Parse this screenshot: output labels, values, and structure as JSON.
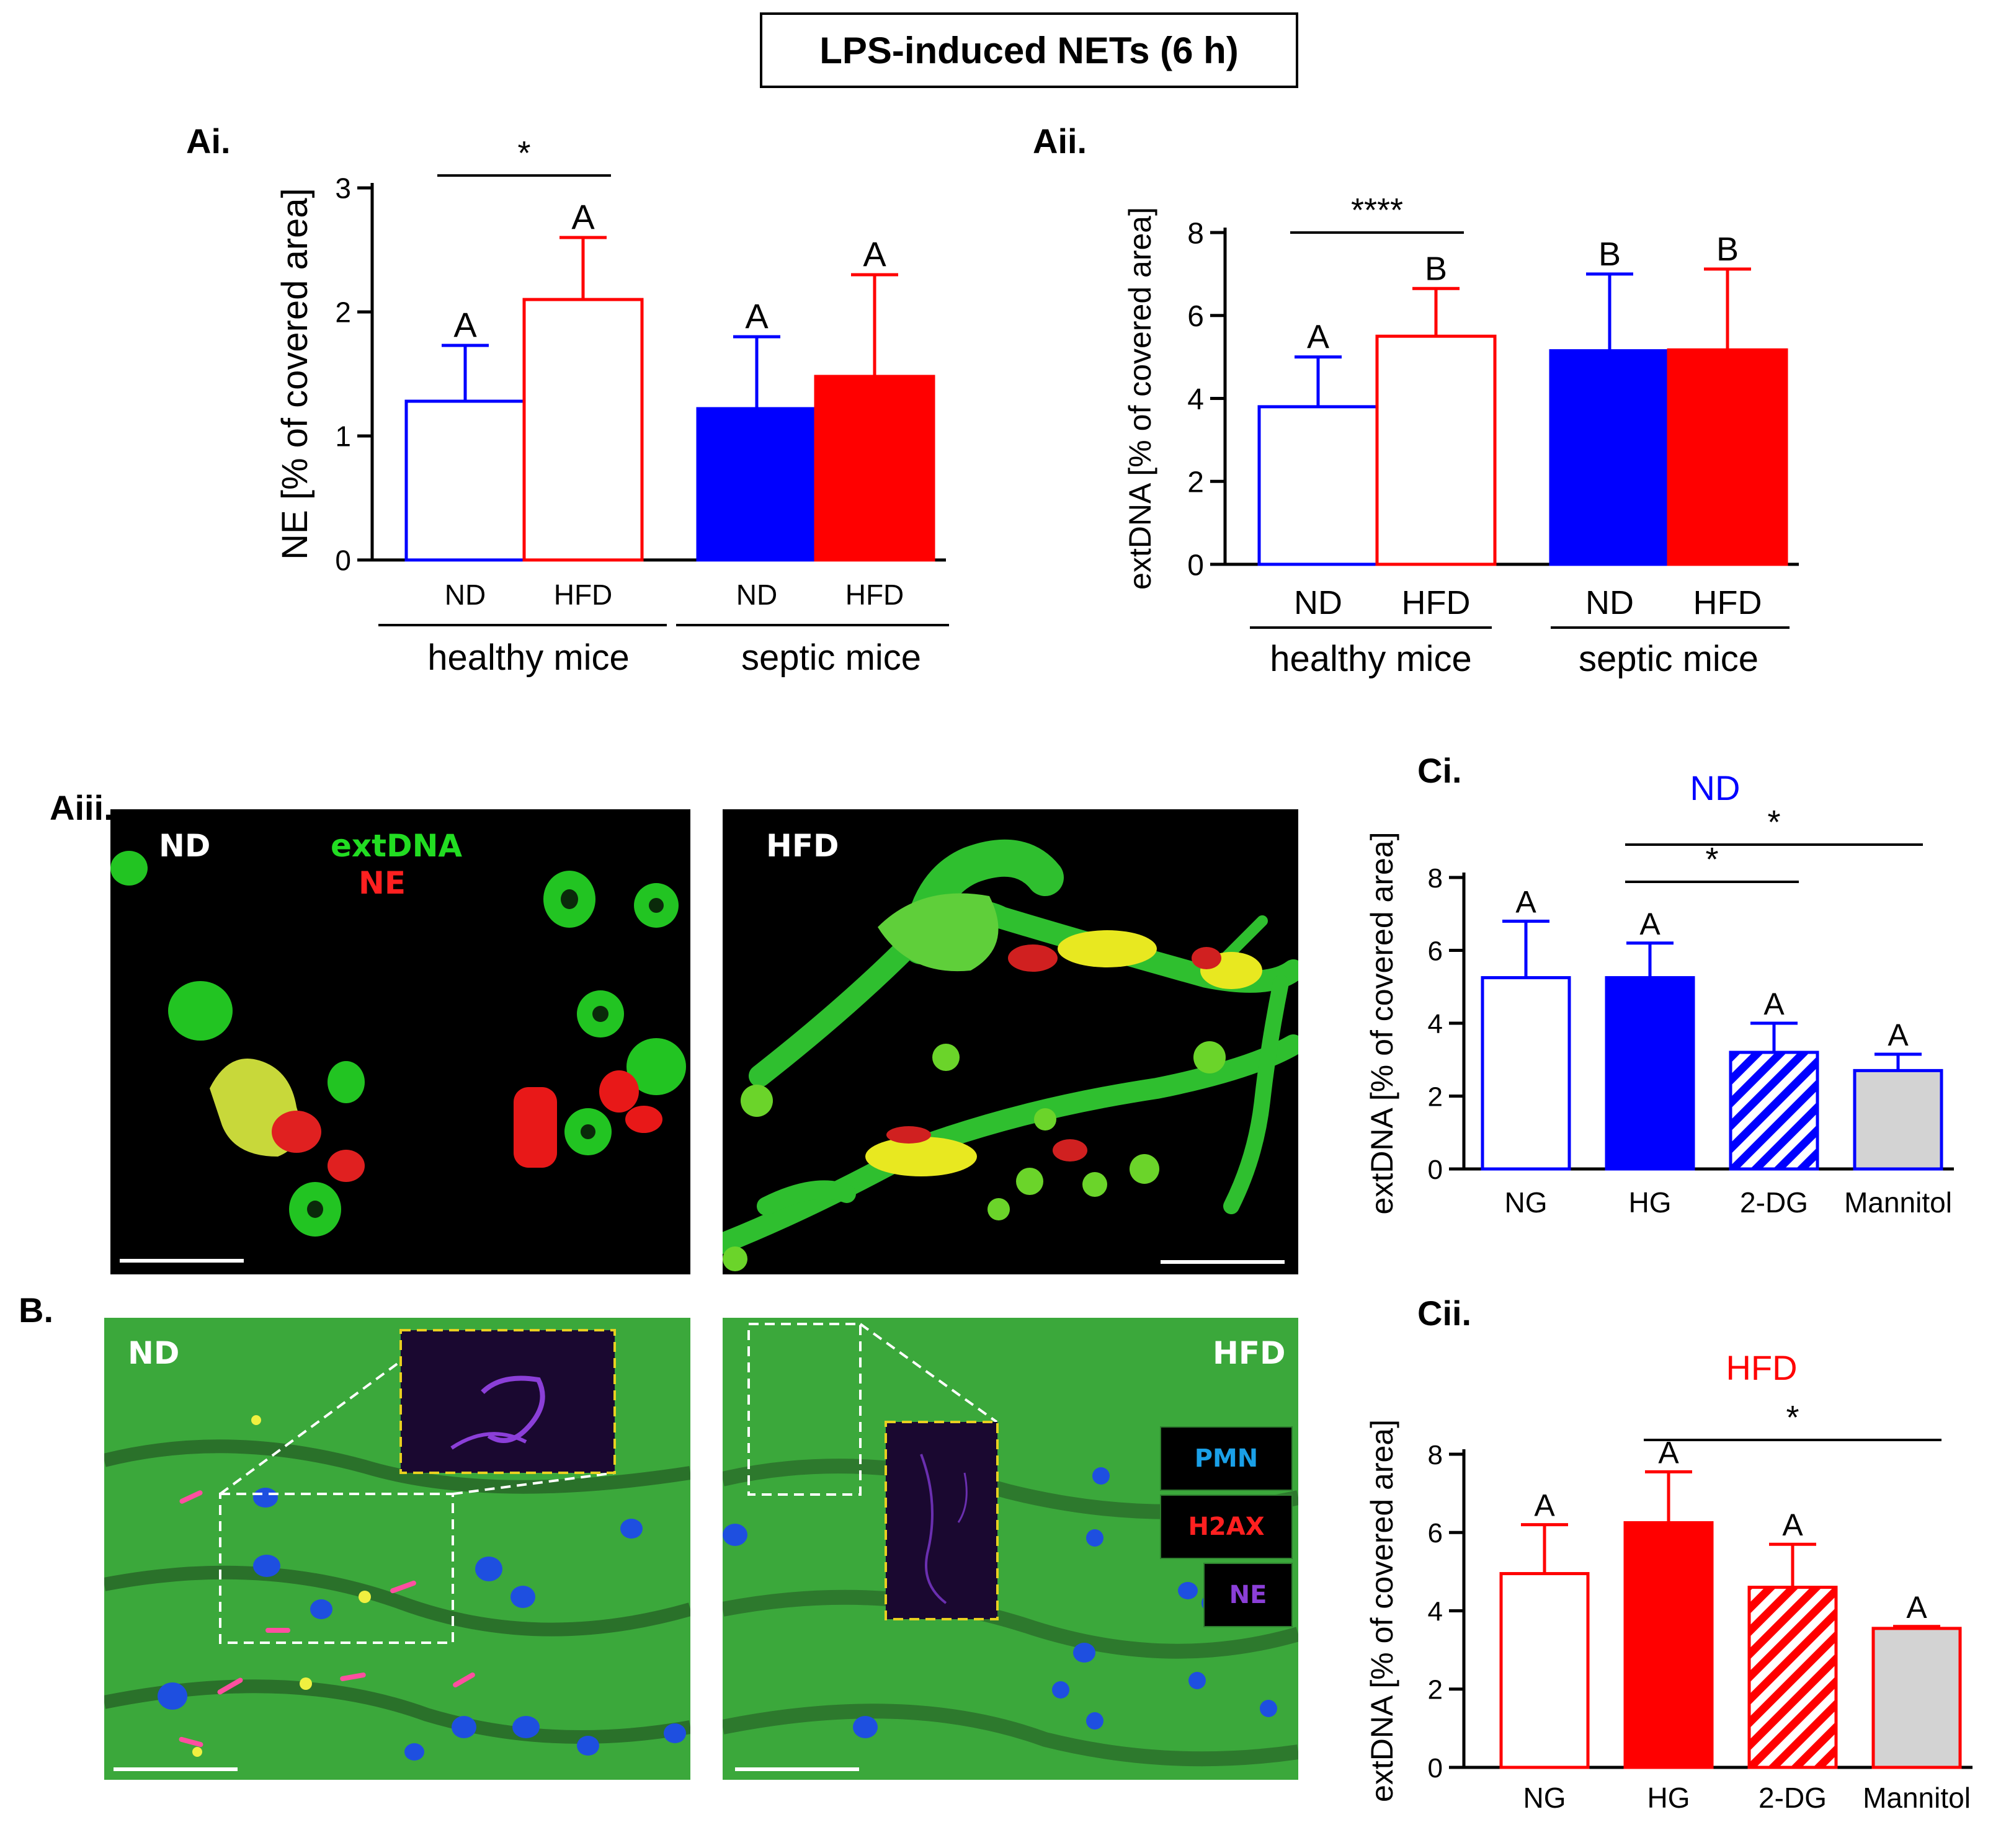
{
  "title": "LPS-induced NETs (6 h)",
  "colors": {
    "nd": "#0000ff",
    "hfd": "#ff0000",
    "mannitol": "#d3d3d3",
    "axis": "#000000"
  },
  "panels": {
    "ai": "Ai.",
    "aii": "Aii.",
    "aiii": "Aiii.",
    "b": "B.",
    "ci": "Ci.",
    "cii": "Cii."
  },
  "aiii": {
    "nd_label": "ND",
    "hfd_label": "HFD",
    "legend_extdna": "extDNA",
    "legend_ne": "NE"
  },
  "b": {
    "nd_label": "ND",
    "hfd_label": "HFD",
    "legend_pmn": "PMN",
    "legend_h2ax": "H2AX",
    "legend_ne": "NE"
  },
  "chart_data": [
    {
      "id": "Ai",
      "type": "bar",
      "ylabel": "NE [% of covered area]",
      "ylim": [
        0,
        3
      ],
      "yticks": [
        0,
        1,
        2,
        3
      ],
      "categories": [
        "ND",
        "HFD",
        "ND",
        "HFD"
      ],
      "groups": [
        {
          "label": "healthy mice",
          "members": [
            0,
            1
          ]
        },
        {
          "label": "septic mice",
          "members": [
            2,
            3
          ]
        }
      ],
      "values": [
        1.28,
        2.1,
        1.22,
        1.48
      ],
      "errors": [
        0.45,
        0.5,
        0.58,
        0.82
      ],
      "letters": [
        "A",
        "A",
        "A",
        "A"
      ],
      "styles": [
        "open-blue",
        "open-red",
        "solid-blue",
        "solid-red"
      ],
      "significance": [
        {
          "from": 0,
          "to": 1,
          "label": "*"
        }
      ]
    },
    {
      "id": "Aii",
      "type": "bar",
      "ylabel": "extDNA [% of covered area]",
      "ylim": [
        0,
        8
      ],
      "yticks": [
        0,
        2,
        4,
        6,
        8
      ],
      "categories": [
        "ND",
        "HFD",
        "ND",
        "HFD"
      ],
      "groups": [
        {
          "label": "healthy mice",
          "members": [
            0,
            1
          ]
        },
        {
          "label": "septic mice",
          "members": [
            2,
            3
          ]
        }
      ],
      "values": [
        3.8,
        5.5,
        5.15,
        5.17
      ],
      "errors": [
        1.2,
        1.15,
        1.85,
        1.95
      ],
      "letters": [
        "A",
        "B",
        "B",
        "B"
      ],
      "styles": [
        "open-blue",
        "open-red",
        "solid-blue",
        "solid-red"
      ],
      "significance": [
        {
          "from": 0,
          "to": 1,
          "label": "****"
        }
      ]
    },
    {
      "id": "Ci",
      "type": "bar",
      "title": "ND",
      "ylabel": "extDNA [% of covered area]",
      "ylim": [
        0,
        8
      ],
      "yticks": [
        0,
        2,
        4,
        6,
        8
      ],
      "categories": [
        "NG",
        "HG",
        "2-DG",
        "Mannitol"
      ],
      "values": [
        5.25,
        5.25,
        3.2,
        2.7
      ],
      "errors": [
        1.55,
        0.95,
        0.8,
        0.45
      ],
      "letters": [
        "A",
        "A",
        "A",
        "A"
      ],
      "styles": [
        "open-blue",
        "solid-blue",
        "hatch-blue",
        "gray-blue"
      ],
      "significance": [
        {
          "from": 1,
          "to": 2,
          "label": "*"
        },
        {
          "from": 1,
          "to": 3,
          "label": "*"
        }
      ]
    },
    {
      "id": "Cii",
      "type": "bar",
      "title": "HFD",
      "ylabel": "extDNA [% of covered area]",
      "ylim": [
        0,
        8
      ],
      "yticks": [
        0,
        2,
        4,
        6,
        8
      ],
      "categories": [
        "NG",
        "HG",
        "2-DG",
        "Mannitol"
      ],
      "values": [
        4.95,
        6.25,
        4.6,
        3.55
      ],
      "errors": [
        1.25,
        1.3,
        1.1,
        0.05
      ],
      "letters": [
        "A",
        "A",
        "A",
        "A"
      ],
      "styles": [
        "open-red",
        "solid-red",
        "hatch-red",
        "gray-red"
      ],
      "significance": [
        {
          "from": 1,
          "to": 3,
          "label": "*"
        }
      ]
    }
  ]
}
